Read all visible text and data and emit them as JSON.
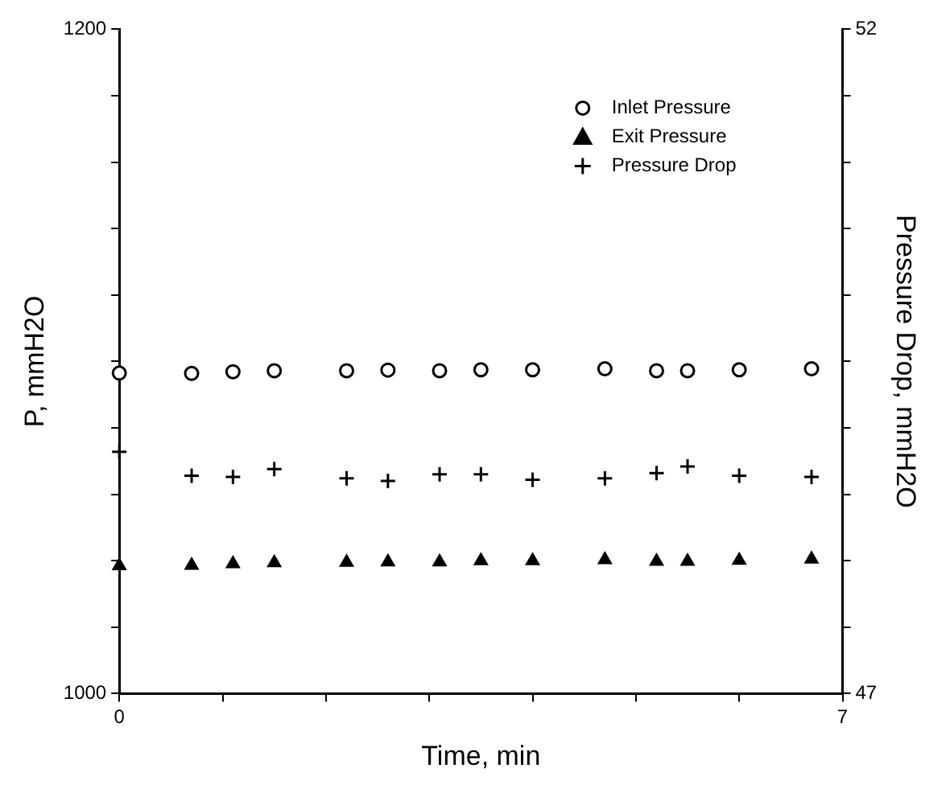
{
  "chart_data": {
    "type": "scatter",
    "xlabel": "Time, min",
    "ylabel": "P, mmH2O",
    "y2label": "Pressure Drop, mmH2O",
    "x": [
      0,
      0.7,
      1.1,
      1.5,
      2.2,
      2.6,
      3.1,
      3.5,
      4.0,
      4.7,
      5.2,
      5.5,
      6.0,
      6.7
    ],
    "series": [
      {
        "name": "Inlet Pressure",
        "color": "#000000",
        "marker": "circle",
        "values": [
          1096.5,
          1096.4,
          1096.9,
          1097.2,
          1097.2,
          1097.4,
          1097.2,
          1097.5,
          1097.5,
          1097.8,
          1097.2,
          1097.2,
          1097.5,
          1097.8
        ]
      },
      {
        "name": "Exit Pressure",
        "color": "#000000",
        "marker": "triangle",
        "values": [
          1038.5,
          1038.6,
          1039.1,
          1039.4,
          1039.5,
          1039.6,
          1039.6,
          1040.0,
          1040.0,
          1040.3,
          1039.8,
          1039.8,
          1040.1,
          1040.5
        ]
      },
      {
        "name": "Pressure Drop",
        "color": "#000000",
        "marker": "cross",
        "axis": "y2",
        "values": [
          48.82,
          48.64,
          48.63,
          48.69,
          48.62,
          48.6,
          48.65,
          48.65,
          48.61,
          48.62,
          48.66,
          48.71,
          48.64,
          48.63
        ]
      }
    ],
    "xlim": [
      0,
      7
    ],
    "xticks": [
      0,
      {
        "value": 1,
        "label": null
      },
      {
        "value": 2,
        "label": null
      },
      {
        "value": 3,
        "label": null
      },
      {
        "value": 4,
        "label": null
      },
      {
        "value": 5,
        "label": null
      },
      {
        "value": 6,
        "label": null
      },
      7
    ],
    "ylim": [
      1000,
      1200
    ],
    "yticks": [
      1000,
      {
        "value": 1020,
        "label": null
      },
      {
        "value": 1040,
        "label": null
      },
      {
        "value": 1060,
        "label": null
      },
      {
        "value": 1080,
        "label": null
      },
      {
        "value": 1100,
        "label": null
      },
      {
        "value": 1120,
        "label": null
      },
      {
        "value": 1140,
        "label": null
      },
      {
        "value": 1160,
        "label": null
      },
      {
        "value": 1180,
        "label": null
      },
      1200
    ],
    "y2lim": [
      47,
      52
    ],
    "y2ticks": [
      47,
      {
        "value": 47.5,
        "label": null
      },
      {
        "value": 48,
        "label": null
      },
      {
        "value": 48.5,
        "label": null
      },
      {
        "value": 49,
        "label": null
      },
      {
        "value": 49.5,
        "label": null
      },
      {
        "value": 50,
        "label": null
      },
      {
        "value": 50.5,
        "label": null
      },
      {
        "value": 51,
        "label": null
      },
      {
        "value": 51.5,
        "label": null
      },
      52
    ],
    "grid": false,
    "legend": "top right"
  }
}
